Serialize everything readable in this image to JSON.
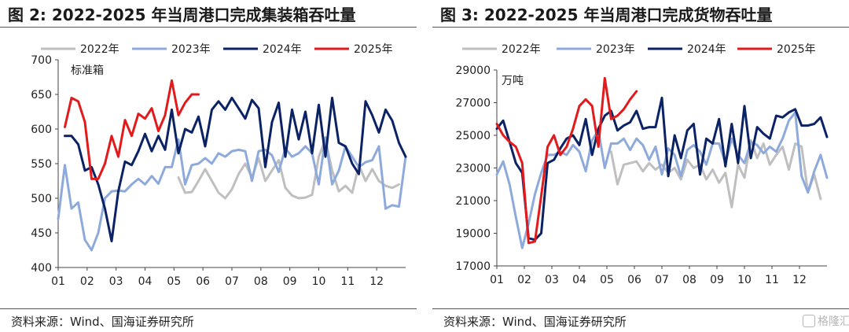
{
  "colors": {
    "y2022": "#bfbfbf",
    "y2023": "#8eaadb",
    "y2024": "#0b2265",
    "y2025": "#e31a1c"
  },
  "watermark": {
    "label": "格隆汇",
    "icon": "logo-box-icon"
  },
  "chart_data": [
    {
      "type": "line",
      "figure_label": "图 2:",
      "title": "2022-2025 年当周港口完成集装箱吞吐量",
      "unit_label": "标准箱",
      "source": "资料来源：Wind、国海证券研究所",
      "ylim": [
        400,
        700
      ],
      "yticks": [
        400,
        450,
        500,
        550,
        600,
        650,
        700
      ],
      "xticks": [
        "01",
        "02",
        "03",
        "04",
        "05",
        "06",
        "07",
        "08",
        "09",
        "10",
        "11",
        "12"
      ],
      "x_domain": [
        1,
        53
      ],
      "grid": false,
      "legend_position": "top",
      "series": [
        {
          "name": "2022年",
          "color_key": "y2022",
          "x": [
            19,
            20,
            21,
            22,
            23,
            24,
            25,
            26,
            27,
            28,
            29,
            30,
            31,
            32,
            33,
            34,
            35,
            36,
            37,
            38,
            39,
            40,
            41,
            42,
            43,
            44,
            45,
            46,
            47,
            48,
            49,
            50,
            51,
            52
          ],
          "values": [
            530,
            508,
            509,
            525,
            542,
            525,
            508,
            500,
            513,
            535,
            550,
            530,
            558,
            525,
            540,
            555,
            515,
            504,
            500,
            501,
            505,
            560,
            585,
            540,
            510,
            518,
            508,
            548,
            525,
            542,
            525,
            518,
            515,
            520
          ]
        },
        {
          "name": "2023年",
          "color_key": "y2023",
          "x": [
            1,
            2,
            3,
            4,
            5,
            6,
            7,
            8,
            9,
            10,
            11,
            12,
            13,
            14,
            15,
            16,
            17,
            18,
            19,
            20,
            21,
            22,
            23,
            24,
            25,
            26,
            27,
            28,
            29,
            30,
            31,
            32,
            33,
            34,
            35,
            36,
            37,
            38,
            39,
            40,
            41,
            42,
            43,
            44,
            45,
            46,
            47,
            48,
            49,
            50,
            51,
            52,
            53
          ],
          "values": [
            470,
            548,
            485,
            494,
            440,
            425,
            450,
            500,
            510,
            511,
            510,
            520,
            528,
            520,
            532,
            521,
            545,
            545,
            585,
            520,
            548,
            550,
            558,
            550,
            565,
            560,
            568,
            570,
            568,
            525,
            568,
            570,
            562,
            538,
            572,
            560,
            565,
            575,
            565,
            520,
            588,
            520,
            540,
            575,
            560,
            545,
            552,
            555,
            575,
            485,
            490,
            488,
            560
          ]
        },
        {
          "name": "2024年",
          "color_key": "y2024",
          "x": [
            2,
            3,
            4,
            5,
            6,
            7,
            8,
            9,
            10,
            11,
            12,
            13,
            14,
            15,
            16,
            17,
            18,
            19,
            20,
            21,
            22,
            23,
            24,
            25,
            26,
            27,
            28,
            29,
            30,
            31,
            32,
            33,
            34,
            35,
            36,
            37,
            38,
            39,
            40,
            41,
            42,
            43,
            44,
            45,
            46,
            47,
            48,
            49,
            50,
            51,
            52,
            53
          ],
          "values": [
            590,
            590,
            578,
            540,
            545,
            520,
            485,
            438,
            510,
            553,
            548,
            568,
            593,
            568,
            590,
            570,
            628,
            565,
            600,
            595,
            618,
            575,
            628,
            640,
            628,
            645,
            630,
            615,
            642,
            630,
            545,
            610,
            638,
            560,
            628,
            585,
            625,
            565,
            635,
            560,
            645,
            580,
            575,
            550,
            535,
            640,
            620,
            595,
            628,
            612,
            580,
            560
          ]
        },
        {
          "name": "2025年",
          "color_key": "y2025",
          "x": [
            2,
            3,
            4,
            5,
            6,
            7,
            8,
            9,
            10,
            11,
            12,
            13,
            14,
            15,
            16,
            17,
            18,
            19,
            20,
            21,
            22
          ],
          "values": [
            603,
            645,
            640,
            610,
            528,
            528,
            550,
            590,
            560,
            613,
            590,
            622,
            615,
            630,
            597,
            620,
            670,
            620,
            638,
            650,
            650
          ]
        }
      ]
    },
    {
      "type": "line",
      "figure_label": "图 3:",
      "title": "2022-2025 年当周港口完成货物吞吐量",
      "unit_label": "万吨",
      "source": "资料来源：Wind、国海证券研究所",
      "ylim": [
        17000,
        29000
      ],
      "yticks": [
        17000,
        19000,
        21000,
        23000,
        25000,
        27000,
        29000
      ],
      "xticks": [
        "01",
        "02",
        "03",
        "04",
        "05",
        "06",
        "07",
        "08",
        "09",
        "10",
        "11",
        "12"
      ],
      "x_domain": [
        1,
        53
      ],
      "grid": false,
      "legend_position": "top",
      "series": [
        {
          "name": "2022年",
          "color_key": "y2022",
          "x": [
            19,
            20,
            21,
            22,
            23,
            24,
            25,
            26,
            27,
            28,
            29,
            30,
            31,
            32,
            33,
            34,
            35,
            36,
            37,
            38,
            39,
            40,
            41,
            42,
            43,
            44,
            45,
            46,
            47,
            48,
            49,
            50,
            51,
            52
          ],
          "values": [
            24000,
            22000,
            23200,
            23300,
            23400,
            22800,
            23300,
            22900,
            23200,
            22700,
            23000,
            22300,
            23500,
            23000,
            23200,
            22300,
            22900,
            22100,
            22700,
            20600,
            23200,
            22400,
            24700,
            23600,
            24500,
            23200,
            23800,
            24300,
            22900,
            24500,
            24300,
            21500,
            22600,
            21100
          ]
        },
        {
          "name": "2023年",
          "color_key": "y2023",
          "x": [
            1,
            2,
            3,
            4,
            5,
            6,
            7,
            8,
            9,
            10,
            11,
            12,
            13,
            14,
            15,
            16,
            17,
            18,
            19,
            20,
            21,
            22,
            23,
            24,
            25,
            26,
            27,
            28,
            29,
            30,
            31,
            32,
            33,
            34,
            35,
            36,
            37,
            38,
            39,
            40,
            41,
            42,
            43,
            44,
            45,
            46,
            47,
            48,
            49,
            50,
            51,
            52,
            53
          ],
          "values": [
            22600,
            23400,
            22000,
            20000,
            18100,
            19600,
            21400,
            22700,
            23800,
            23800,
            24000,
            23800,
            24400,
            24000,
            22800,
            24700,
            25300,
            23000,
            24500,
            24500,
            24800,
            24100,
            24800,
            24400,
            23500,
            24300,
            22600,
            24200,
            23800,
            22500,
            24100,
            24400,
            24000,
            23200,
            24500,
            24500,
            23300,
            24800,
            23800,
            23300,
            24600,
            24400,
            23900,
            24300,
            24000,
            24800,
            25900,
            26400,
            22500,
            21500,
            22800,
            23800,
            22400
          ]
        },
        {
          "name": "2024年",
          "color_key": "y2024",
          "x": [
            1,
            2,
            3,
            4,
            5,
            6,
            7,
            8,
            9,
            10,
            11,
            12,
            13,
            14,
            15,
            16,
            17,
            18,
            19,
            20,
            21,
            22,
            23,
            24,
            25,
            26,
            27,
            28,
            29,
            30,
            31,
            32,
            33,
            34,
            35,
            36,
            37,
            38,
            39,
            40,
            41,
            42,
            43,
            44,
            45,
            46,
            47,
            48,
            49,
            50,
            51,
            52,
            53
          ],
          "values": [
            25400,
            25900,
            24600,
            23300,
            22700,
            18700,
            18600,
            19000,
            23300,
            23500,
            24200,
            24800,
            25000,
            24400,
            26000,
            23800,
            25400,
            26200,
            26500,
            25300,
            25600,
            25800,
            26500,
            25400,
            25500,
            25500,
            27300,
            22500,
            25000,
            23600,
            25300,
            25700,
            22600,
            24800,
            24500,
            26000,
            23100,
            25700,
            23300,
            26800,
            23600,
            25500,
            25100,
            24800,
            26200,
            26100,
            26400,
            26600,
            25600,
            25600,
            25700,
            26100,
            24900
          ]
        },
        {
          "name": "2025年",
          "color_key": "y2025",
          "x": [
            1,
            2,
            3,
            4,
            5,
            6,
            7,
            8,
            9,
            10,
            11,
            12,
            13,
            14,
            15,
            16,
            17,
            18,
            19,
            20,
            21,
            22,
            23
          ],
          "values": [
            25700,
            25000,
            24600,
            24300,
            23300,
            18400,
            18500,
            21300,
            24300,
            25000,
            23800,
            24300,
            25400,
            26800,
            27200,
            26800,
            24300,
            28500,
            26000,
            26200,
            26600,
            27200,
            27700
          ]
        }
      ]
    }
  ]
}
